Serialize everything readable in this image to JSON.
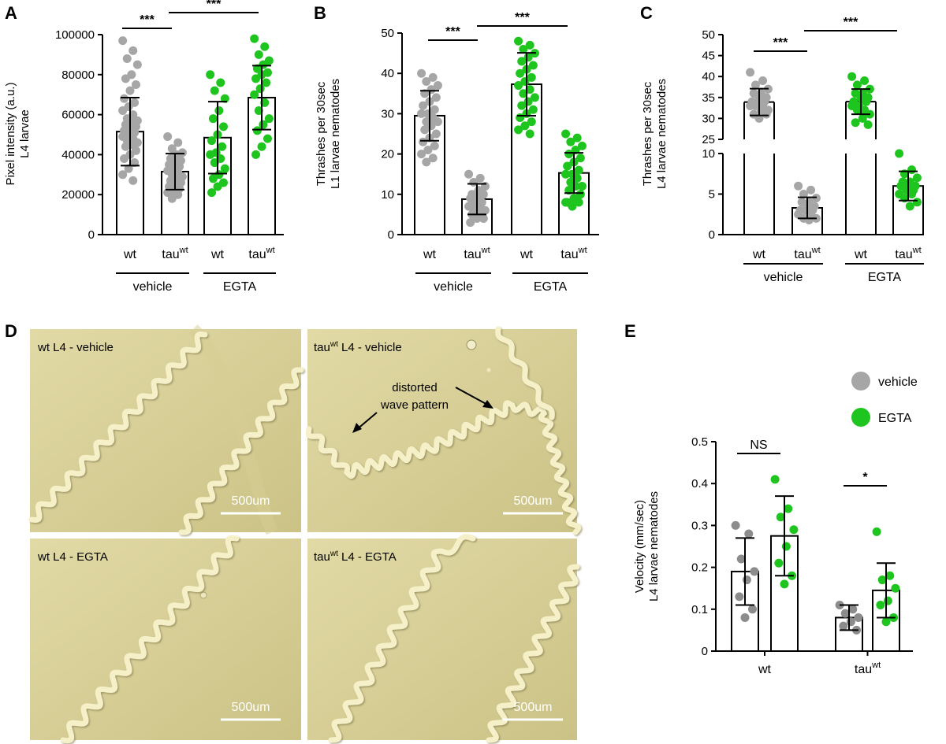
{
  "figure": {
    "letters": [
      "A",
      "B",
      "C",
      "D",
      "E"
    ],
    "colors": {
      "vehicle": "#a6a6a6",
      "egta": "#1ec51e",
      "vehicle_dark": "#8c8c8c",
      "micro_bg": "#dcd49d"
    }
  },
  "chart_data": [
    {
      "panel": "A",
      "type": "bar",
      "ylabel_line1": "Pixel intensity (a.u.)",
      "ylabel_line2": "L4 larvae",
      "ylim": [
        0,
        100000
      ],
      "yticks": [
        "0",
        "20000",
        "40000",
        "60000",
        "80000",
        "100000"
      ],
      "categories": [
        {
          "base": "wt",
          "sup": ""
        },
        {
          "base": "tau",
          "sup": "wt"
        },
        {
          "base": "wt",
          "sup": ""
        },
        {
          "base": "tau",
          "sup": "wt"
        }
      ],
      "groups": [
        "vehicle",
        "EGTA"
      ],
      "values": [
        51500,
        31500,
        48500,
        68500
      ],
      "sd": [
        17000,
        9000,
        18000,
        16000
      ],
      "points": [
        [
          97000,
          92000,
          88000,
          85000,
          80000,
          78000,
          75000,
          72000,
          68000,
          66000,
          64000,
          62000,
          60000,
          58000,
          57000,
          56000,
          55000,
          54000,
          53000,
          52000,
          51000,
          50000,
          49000,
          48000,
          47000,
          46000,
          45000,
          44000,
          42000,
          40000,
          38000,
          36000,
          33000,
          30000,
          27000
        ],
        [
          49000,
          46000,
          43000,
          41000,
          40000,
          38000,
          37000,
          36000,
          35000,
          34000,
          33000,
          32000,
          31000,
          30000,
          29000,
          28000,
          27000,
          26000,
          25000,
          24000,
          23000,
          22000,
          21000,
          20000,
          18000
        ],
        [
          80000,
          76000,
          72000,
          68000,
          62000,
          58000,
          54000,
          50000,
          47000,
          44000,
          41000,
          40000,
          38000,
          36000,
          33000,
          30000,
          28000,
          26000,
          24000,
          21000
        ],
        [
          98000,
          94000,
          90000,
          87000,
          85000,
          83000,
          81000,
          80000,
          78000,
          76000,
          73000,
          70000,
          66000,
          62000,
          58000,
          55000,
          52000,
          48000,
          44000,
          40000
        ]
      ],
      "colors": [
        "#a6a6a6",
        "#a6a6a6",
        "#1ec51e",
        "#1ec51e"
      ],
      "sig": [
        "***",
        "***"
      ]
    },
    {
      "panel": "B",
      "type": "bar",
      "ylabel_line1": "Thrashes per 30sec",
      "ylabel_line2": "L1 larvae nematodes",
      "ylim": [
        0,
        50
      ],
      "yticks": [
        "0",
        "10",
        "20",
        "30",
        "40",
        "50"
      ],
      "categories": [
        {
          "base": "wt",
          "sup": ""
        },
        {
          "base": "tau",
          "sup": "wt"
        },
        {
          "base": "wt",
          "sup": ""
        },
        {
          "base": "tau",
          "sup": "wt"
        }
      ],
      "groups": [
        "vehicle",
        "EGTA"
      ],
      "values": [
        29.5,
        8.8,
        37.3,
        15.3
      ],
      "sd": [
        6.2,
        3.8,
        7.8,
        5.0
      ],
      "points": [
        [
          40,
          39,
          38,
          37,
          36,
          35,
          34,
          33,
          32,
          31,
          30,
          30,
          29,
          28,
          28,
          27,
          26,
          25,
          24,
          23,
          22,
          21,
          20,
          19,
          18
        ],
        [
          15,
          14,
          13,
          12,
          11,
          10,
          10,
          9,
          9,
          8,
          8,
          7,
          7,
          6,
          6,
          5,
          5,
          4,
          4,
          3
        ],
        [
          48,
          47,
          46,
          45,
          44,
          43,
          42,
          41,
          40,
          39,
          38,
          37,
          36,
          35,
          34,
          33,
          32,
          31,
          30,
          29,
          28,
          27,
          26,
          25
        ],
        [
          25,
          24,
          23,
          22,
          21,
          20,
          19,
          18,
          17,
          16,
          15,
          15,
          14,
          13,
          12,
          12,
          11,
          10,
          9,
          8,
          8,
          7,
          8
        ]
      ],
      "colors": [
        "#a6a6a6",
        "#a6a6a6",
        "#1ec51e",
        "#1ec51e"
      ],
      "sig": [
        "***",
        "***"
      ]
    },
    {
      "panel": "C",
      "type": "bar",
      "ylabel_line1": "Thrashes per 30sec",
      "ylabel_line2": "L4 larvae nematodes",
      "broken_axis": true,
      "ylim_lower": [
        0,
        10
      ],
      "ylim_upper": [
        25,
        50
      ],
      "yticks_lower": [
        "0",
        "5",
        "10"
      ],
      "yticks_upper": [
        "25",
        "30",
        "35",
        "40",
        "45",
        "50"
      ],
      "categories": [
        {
          "base": "wt",
          "sup": ""
        },
        {
          "base": "tau",
          "sup": "wt"
        },
        {
          "base": "wt",
          "sup": ""
        },
        {
          "base": "tau",
          "sup": "wt"
        }
      ],
      "groups": [
        "vehicle",
        "EGTA"
      ],
      "values": [
        33.9,
        3.3,
        34.0,
        6.0
      ],
      "sd": [
        3.2,
        1.3,
        3.0,
        1.8
      ],
      "points": [
        [
          41,
          39,
          38,
          37,
          36,
          36,
          35,
          35,
          34,
          34,
          34,
          33,
          33,
          33,
          32,
          32,
          31,
          31,
          30
        ],
        [
          6,
          5.5,
          5,
          4.5,
          4,
          4,
          3.5,
          3.5,
          3,
          3,
          3,
          2.5,
          2.5,
          2,
          2,
          1.8
        ],
        [
          40,
          39,
          38,
          37,
          36,
          36,
          35,
          35,
          34,
          34,
          33,
          33,
          32,
          32,
          31,
          30,
          29,
          28.5
        ],
        [
          10,
          8,
          7.5,
          7,
          6.5,
          6.5,
          6,
          6,
          6,
          5.5,
          5.5,
          5,
          5,
          4.5,
          4,
          3.5
        ]
      ],
      "colors": [
        "#a6a6a6",
        "#a6a6a6",
        "#1ec51e",
        "#1ec51e"
      ],
      "sig": [
        "***",
        "***"
      ]
    },
    {
      "panel": "E",
      "type": "bar",
      "ylabel_line1": "Velocity (mm/sec)",
      "ylabel_line2": "L4 larvae nematodes",
      "ylim": [
        0,
        0.5
      ],
      "yticks": [
        "0",
        "0.1",
        "0.2",
        "0.3",
        "0.4",
        "0.5"
      ],
      "categories": [
        {
          "base": "wt",
          "sup": ""
        },
        {
          "base": "tau",
          "sup": "wt"
        }
      ],
      "series": [
        {
          "name": "vehicle",
          "values": [
            0.19,
            0.08
          ],
          "sd": [
            0.08,
            0.03
          ],
          "points": [
            [
              0.3,
              0.28,
              0.22,
              0.19,
              0.17,
              0.13,
              0.1,
              0.08
            ],
            [
              0.11,
              0.1,
              0.09,
              0.08,
              0.07,
              0.06,
              0.05
            ]
          ]
        },
        {
          "name": "EGTA",
          "values": [
            0.275,
            0.145
          ],
          "sd": [
            0.095,
            0.065
          ],
          "points": [
            [
              0.41,
              0.34,
              0.32,
              0.29,
              0.25,
              0.21,
              0.18,
              0.16
            ],
            [
              0.285,
              0.18,
              0.17,
              0.15,
              0.12,
              0.11,
              0.08,
              0.07
            ]
          ]
        }
      ],
      "legend": {
        "vehicle": "vehicle",
        "egta": "EGTA",
        "placement": "top-right"
      },
      "sig": [
        "NS",
        "*"
      ]
    }
  ],
  "micrographs": {
    "panels": [
      {
        "prefix": "wt",
        "sup": "",
        "suffix": " L4 - vehicle"
      },
      {
        "prefix": "tau",
        "sup": "wt",
        "suffix": " L4 - vehicle"
      },
      {
        "prefix": "wt",
        "sup": "",
        "suffix": " L4 - EGTA"
      },
      {
        "prefix": "tau",
        "sup": "wt",
        "suffix": " L4 - EGTA"
      }
    ],
    "scale_bar": "500um",
    "annotation_line1": "distorted",
    "annotation_line2": "wave pattern"
  }
}
